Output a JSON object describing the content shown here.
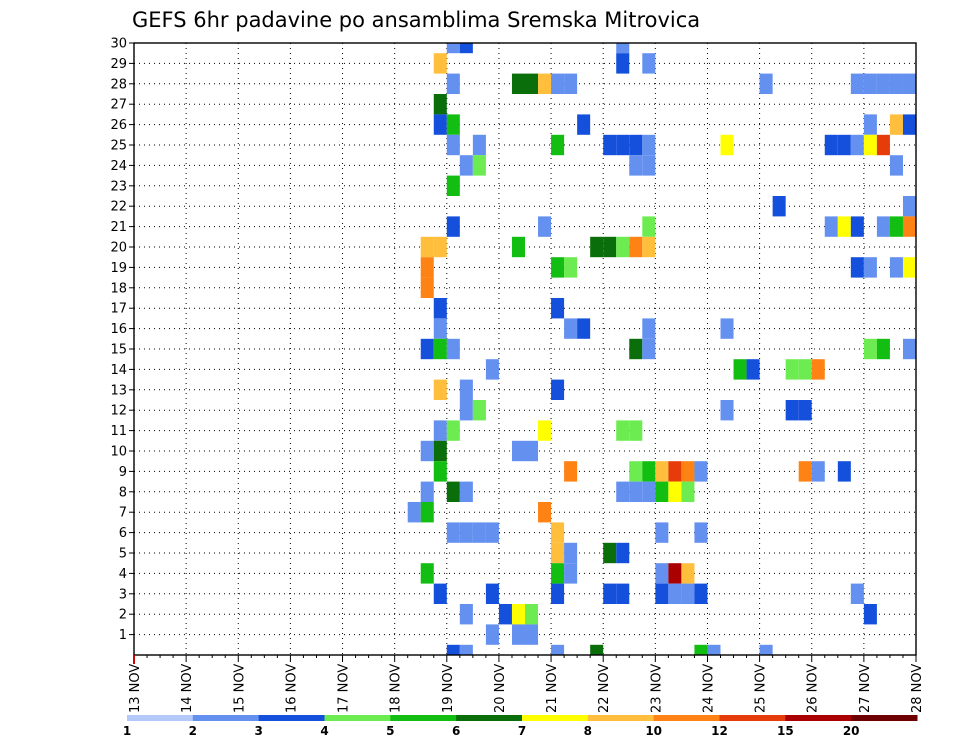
{
  "chart_data": {
    "type": "heatmap",
    "title": "GEFS 6hr padavine po ansamblima Sremska Mitrovica",
    "xlabel": "",
    "ylabel": "",
    "x_tick_labels": [
      "13 NOV",
      "14 NOV",
      "15 NOV",
      "16 NOV",
      "17 NOV",
      "18 NOV",
      "19 NOV",
      "20 NOV",
      "21 NOV",
      "22 NOV",
      "23 NOV",
      "24 NOV",
      "25 NOV",
      "26 NOV",
      "27 NOV",
      "28 NOV"
    ],
    "y_tick_labels": [
      "1",
      "2",
      "3",
      "4",
      "5",
      "6",
      "7",
      "8",
      "9",
      "10",
      "11",
      "12",
      "13",
      "14",
      "15",
      "16",
      "17",
      "18",
      "19",
      "20",
      "21",
      "22",
      "23",
      "24",
      "25",
      "26",
      "27",
      "28",
      "29",
      "30"
    ],
    "x_unit": "6-hour step (4 per day), 0 = 13 NOV 00h",
    "xlim": [
      0,
      60
    ],
    "ylim": [
      0,
      30
    ],
    "grid": true,
    "legend_placement": "bottom",
    "color_scale": {
      "labels": [
        "1",
        "2",
        "3",
        "4",
        "5",
        "6",
        "7",
        "8",
        "10",
        "12",
        "15",
        "20"
      ],
      "colors": [
        "#b4c8fa",
        "#6490f0",
        "#1450dc",
        "#6cec50",
        "#12be12",
        "#0a6e0a",
        "#ffff00",
        "#ffbe3c",
        "#ff8214",
        "#e63c0a",
        "#aa0000",
        "#6e0000"
      ]
    },
    "cells": [
      [
        24,
        30,
        1
      ],
      [
        25,
        30,
        2
      ],
      [
        37,
        30,
        1
      ],
      [
        23,
        29,
        7
      ],
      [
        37,
        29,
        2
      ],
      [
        39,
        29,
        1
      ],
      [
        24,
        28,
        1
      ],
      [
        29,
        28,
        5
      ],
      [
        30,
        28,
        5
      ],
      [
        31,
        28,
        7
      ],
      [
        32,
        28,
        1
      ],
      [
        33,
        28,
        1
      ],
      [
        48,
        28,
        1
      ],
      [
        55,
        28,
        1
      ],
      [
        56,
        28,
        1
      ],
      [
        57,
        28,
        1
      ],
      [
        58,
        28,
        1
      ],
      [
        59,
        28,
        1
      ],
      [
        23,
        27,
        5
      ],
      [
        23,
        26,
        2
      ],
      [
        24,
        26,
        4
      ],
      [
        34,
        26,
        2
      ],
      [
        56,
        26,
        1
      ],
      [
        58,
        26,
        7
      ],
      [
        59,
        26,
        2
      ],
      [
        24,
        25,
        1
      ],
      [
        26,
        25,
        1
      ],
      [
        32,
        25,
        4
      ],
      [
        36,
        25,
        2
      ],
      [
        37,
        25,
        2
      ],
      [
        38,
        25,
        2
      ],
      [
        39,
        25,
        1
      ],
      [
        45,
        25,
        6
      ],
      [
        53,
        25,
        2
      ],
      [
        54,
        25,
        2
      ],
      [
        55,
        25,
        1
      ],
      [
        56,
        25,
        6
      ],
      [
        57,
        25,
        9
      ],
      [
        25,
        24,
        1
      ],
      [
        26,
        24,
        3
      ],
      [
        38,
        24,
        1
      ],
      [
        39,
        24,
        1
      ],
      [
        58,
        24,
        1
      ],
      [
        24,
        23,
        4
      ],
      [
        49,
        22,
        2
      ],
      [
        59,
        22,
        1
      ],
      [
        24,
        21,
        2
      ],
      [
        31,
        21,
        1
      ],
      [
        39,
        21,
        3
      ],
      [
        53,
        21,
        1
      ],
      [
        54,
        21,
        6
      ],
      [
        55,
        21,
        2
      ],
      [
        57,
        21,
        1
      ],
      [
        58,
        21,
        4
      ],
      [
        59,
        21,
        8
      ],
      [
        22,
        20,
        7
      ],
      [
        23,
        20,
        7
      ],
      [
        29,
        20,
        4
      ],
      [
        35,
        20,
        5
      ],
      [
        36,
        20,
        5
      ],
      [
        37,
        20,
        3
      ],
      [
        38,
        20,
        8
      ],
      [
        39,
        20,
        7
      ],
      [
        22,
        19,
        8
      ],
      [
        32,
        19,
        4
      ],
      [
        33,
        19,
        3
      ],
      [
        55,
        19,
        2
      ],
      [
        56,
        19,
        1
      ],
      [
        58,
        19,
        1
      ],
      [
        59,
        19,
        6
      ],
      [
        22,
        18,
        8
      ],
      [
        23,
        17,
        2
      ],
      [
        32,
        17,
        2
      ],
      [
        23,
        16,
        1
      ],
      [
        33,
        16,
        1
      ],
      [
        34,
        16,
        2
      ],
      [
        39,
        16,
        1
      ],
      [
        45,
        16,
        1
      ],
      [
        22,
        15,
        2
      ],
      [
        23,
        15,
        4
      ],
      [
        24,
        15,
        1
      ],
      [
        38,
        15,
        5
      ],
      [
        39,
        15,
        1
      ],
      [
        56,
        15,
        3
      ],
      [
        57,
        15,
        4
      ],
      [
        59,
        15,
        1
      ],
      [
        27,
        14,
        1
      ],
      [
        46,
        14,
        4
      ],
      [
        47,
        14,
        2
      ],
      [
        50,
        14,
        3
      ],
      [
        51,
        14,
        3
      ],
      [
        52,
        14,
        8
      ],
      [
        23,
        13,
        7
      ],
      [
        25,
        13,
        1
      ],
      [
        32,
        13,
        2
      ],
      [
        25,
        12,
        1
      ],
      [
        26,
        12,
        3
      ],
      [
        45,
        12,
        1
      ],
      [
        50,
        12,
        2
      ],
      [
        51,
        12,
        2
      ],
      [
        23,
        11,
        1
      ],
      [
        24,
        11,
        3
      ],
      [
        31,
        11,
        6
      ],
      [
        37,
        11,
        3
      ],
      [
        38,
        11,
        3
      ],
      [
        22,
        10,
        1
      ],
      [
        23,
        10,
        5
      ],
      [
        29,
        10,
        1
      ],
      [
        30,
        10,
        1
      ],
      [
        23,
        9,
        4
      ],
      [
        33,
        9,
        8
      ],
      [
        38,
        9,
        3
      ],
      [
        39,
        9,
        4
      ],
      [
        40,
        9,
        7
      ],
      [
        41,
        9,
        9
      ],
      [
        42,
        9,
        8
      ],
      [
        43,
        9,
        1
      ],
      [
        51,
        9,
        8
      ],
      [
        52,
        9,
        1
      ],
      [
        54,
        9,
        2
      ],
      [
        22,
        8,
        1
      ],
      [
        24,
        8,
        5
      ],
      [
        25,
        8,
        1
      ],
      [
        37,
        8,
        1
      ],
      [
        38,
        8,
        1
      ],
      [
        39,
        8,
        1
      ],
      [
        40,
        8,
        4
      ],
      [
        41,
        8,
        6
      ],
      [
        42,
        8,
        3
      ],
      [
        21,
        7,
        1
      ],
      [
        22,
        7,
        4
      ],
      [
        31,
        7,
        8
      ],
      [
        24,
        6,
        1
      ],
      [
        25,
        6,
        1
      ],
      [
        26,
        6,
        1
      ],
      [
        27,
        6,
        1
      ],
      [
        32,
        6,
        7
      ],
      [
        40,
        6,
        1
      ],
      [
        43,
        6,
        1
      ],
      [
        32,
        5,
        7
      ],
      [
        33,
        5,
        1
      ],
      [
        36,
        5,
        5
      ],
      [
        37,
        5,
        2
      ],
      [
        22,
        4,
        4
      ],
      [
        32,
        4,
        4
      ],
      [
        33,
        4,
        1
      ],
      [
        40,
        4,
        1
      ],
      [
        41,
        4,
        10
      ],
      [
        42,
        4,
        7
      ],
      [
        23,
        3,
        2
      ],
      [
        27,
        3,
        2
      ],
      [
        32,
        3,
        2
      ],
      [
        36,
        3,
        2
      ],
      [
        37,
        3,
        2
      ],
      [
        40,
        3,
        2
      ],
      [
        41,
        3,
        1
      ],
      [
        42,
        3,
        1
      ],
      [
        43,
        3,
        2
      ],
      [
        55,
        3,
        1
      ],
      [
        25,
        2,
        1
      ],
      [
        28,
        2,
        2
      ],
      [
        29,
        2,
        6
      ],
      [
        30,
        2,
        3
      ],
      [
        56,
        2,
        2
      ],
      [
        27,
        1,
        1
      ],
      [
        29,
        1,
        1
      ],
      [
        30,
        1,
        1
      ],
      [
        24,
        0,
        2
      ],
      [
        25,
        0,
        1
      ],
      [
        32,
        0,
        1
      ],
      [
        35,
        0,
        5
      ],
      [
        43,
        0,
        4
      ],
      [
        44,
        0,
        1
      ],
      [
        48,
        0,
        1
      ]
    ]
  }
}
